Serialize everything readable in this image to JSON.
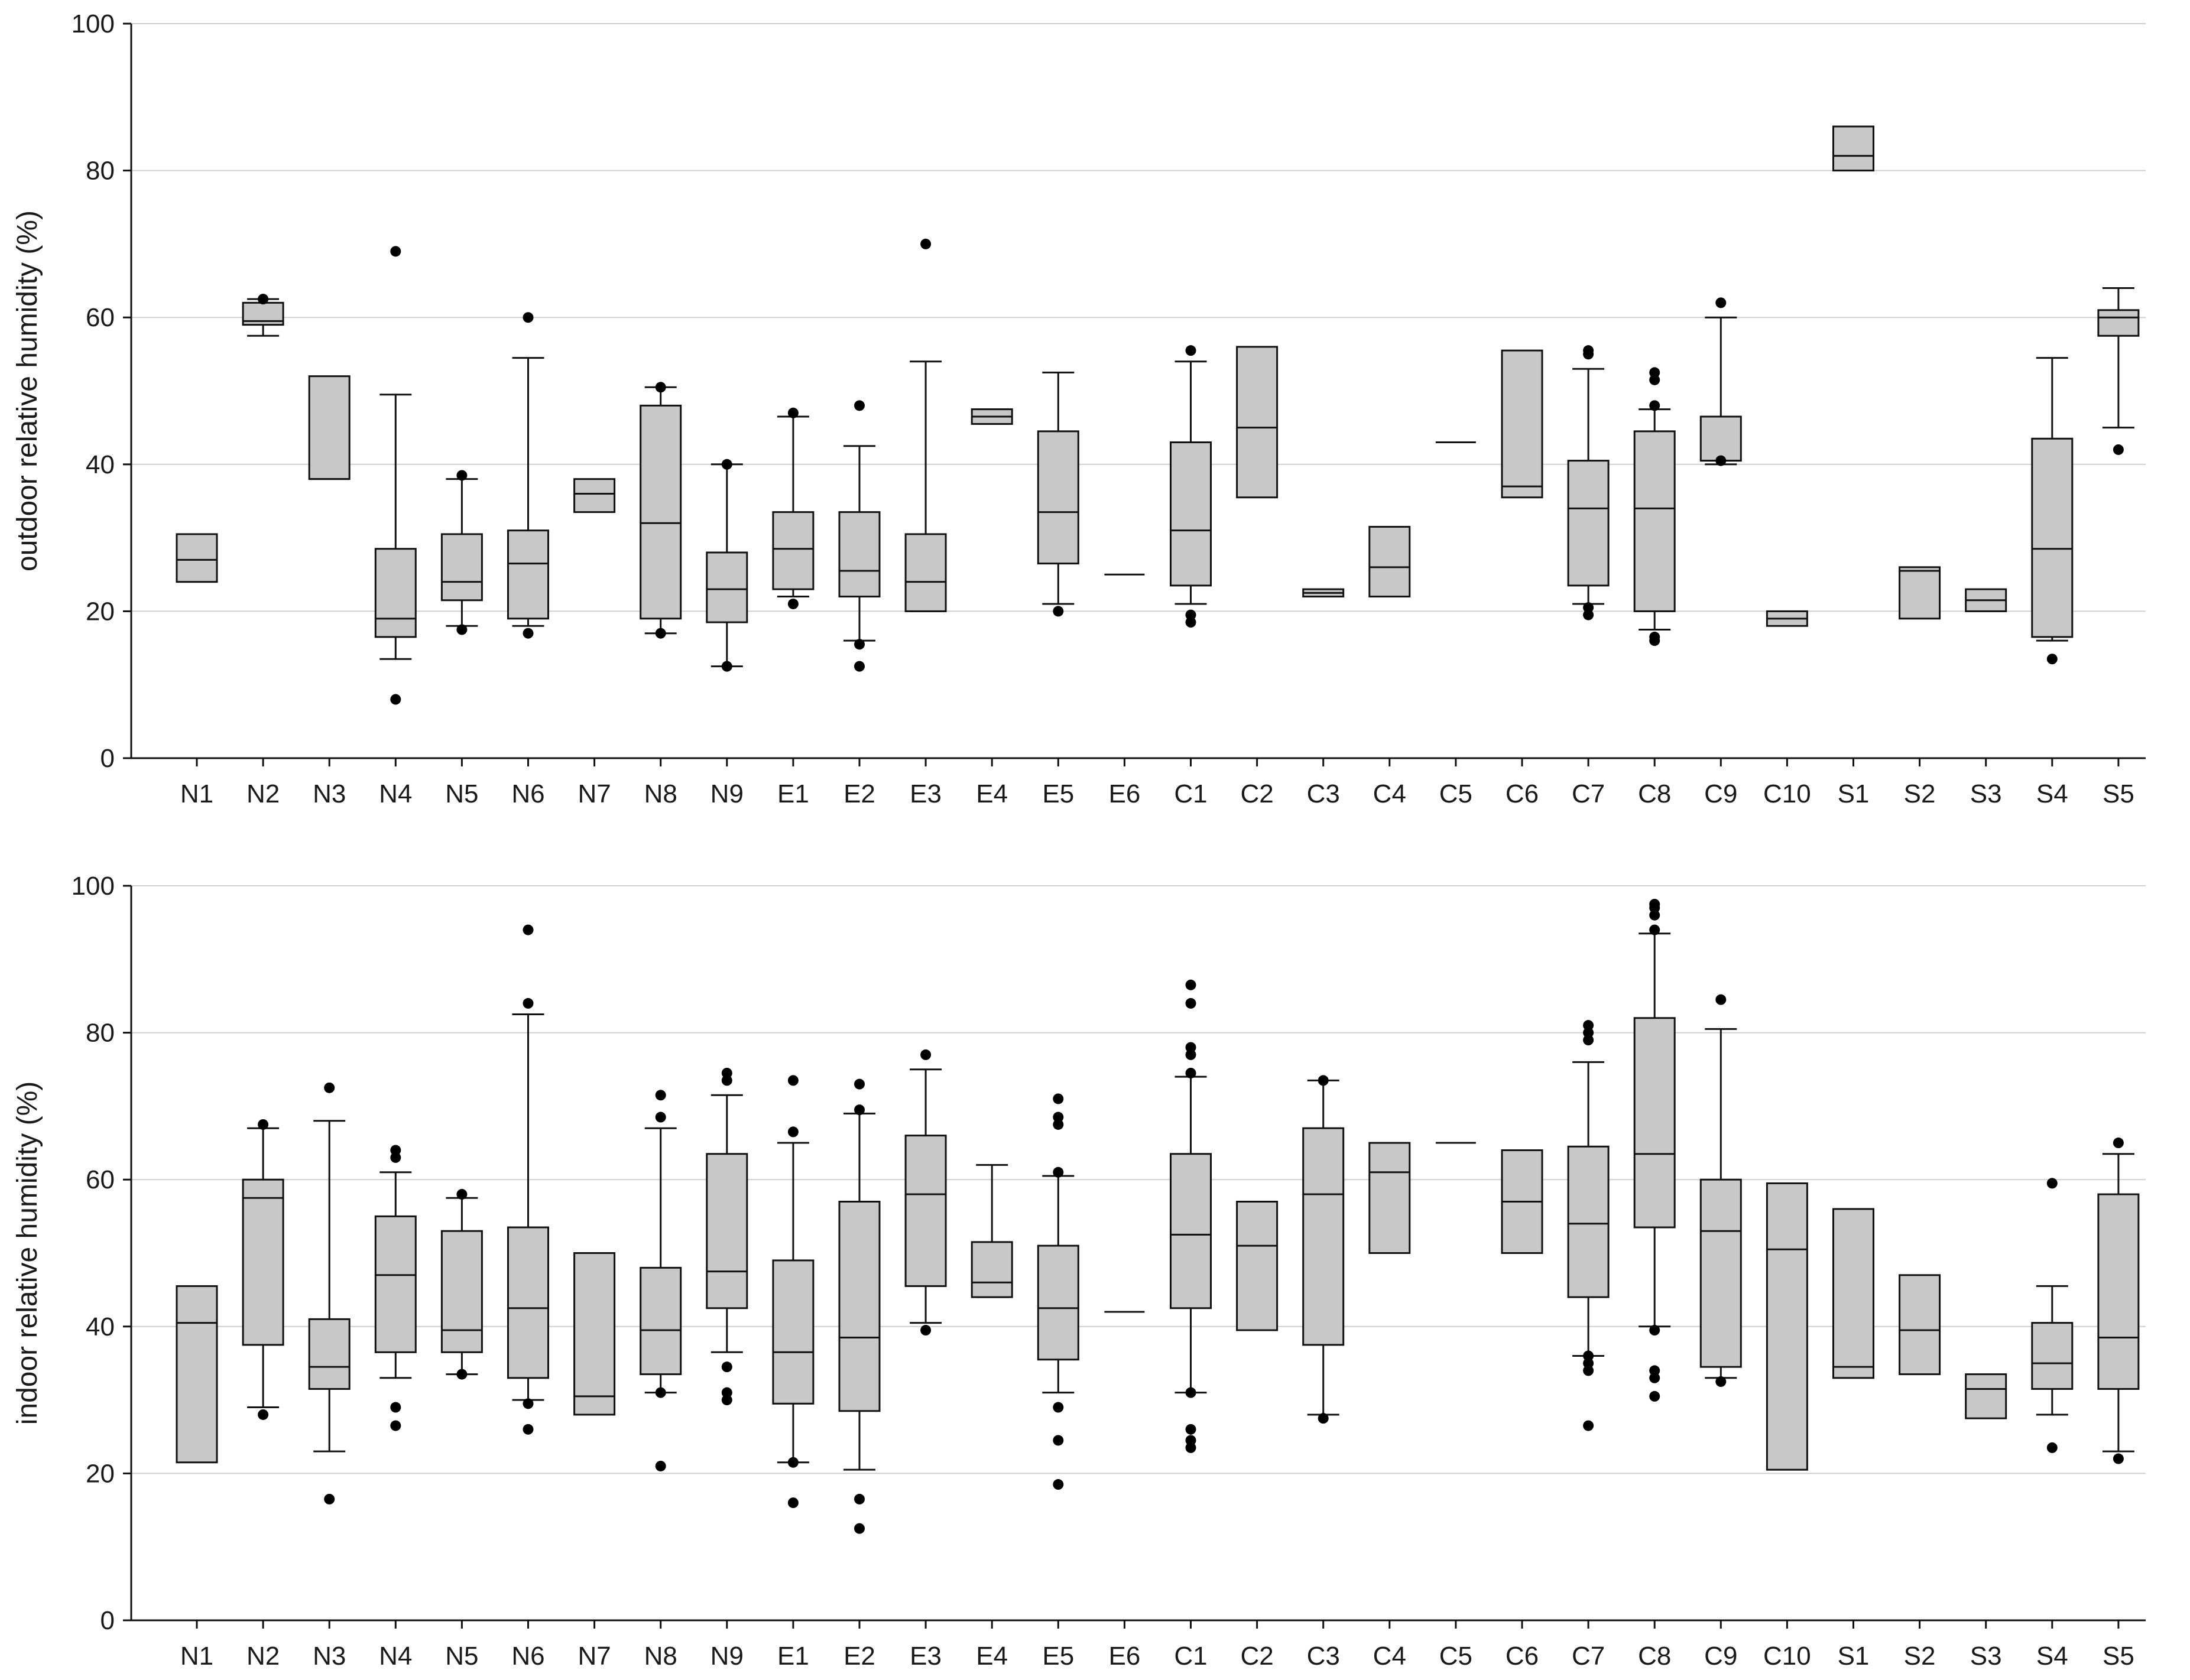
{
  "colors": {
    "box_fill": "#c8c8c8",
    "stroke": "#111111",
    "grid": "#cfcfcf",
    "outlier": "#000000"
  },
  "chart_data": [
    {
      "type": "box",
      "title": "",
      "xlabel": "",
      "ylabel": "outdoor relative humidity (%)",
      "ylim": [
        0,
        100
      ],
      "yticks": [
        0,
        20,
        40,
        60,
        80,
        100
      ],
      "grid": true,
      "categories": [
        "N1",
        "N2",
        "N3",
        "N4",
        "N5",
        "N6",
        "N7",
        "N8",
        "N9",
        "E1",
        "E2",
        "E3",
        "E4",
        "E5",
        "E6",
        "C1",
        "C2",
        "C3",
        "C4",
        "C5",
        "C6",
        "C7",
        "C8",
        "C9",
        "C10",
        "S1",
        "S2",
        "S3",
        "S4",
        "S5"
      ],
      "boxes": [
        {
          "q1": 24,
          "median": 27,
          "q3": 30.5,
          "whisker_low": null,
          "whisker_high": null,
          "outliers": []
        },
        {
          "q1": 59,
          "median": 59.5,
          "q3": 62,
          "whisker_low": 57.5,
          "whisker_high": 62.5,
          "outliers": [
            62.5
          ]
        },
        {
          "q1": 38,
          "median": 38,
          "q3": 52,
          "whisker_low": null,
          "whisker_high": null,
          "outliers": []
        },
        {
          "q1": 16.5,
          "median": 19,
          "q3": 28.5,
          "whisker_low": 13.5,
          "whisker_high": 49.5,
          "outliers": [
            69,
            8
          ]
        },
        {
          "q1": 21.5,
          "median": 24,
          "q3": 30.5,
          "whisker_low": 18,
          "whisker_high": 38,
          "outliers": [
            38.5,
            17.5
          ]
        },
        {
          "q1": 19,
          "median": 26.5,
          "q3": 31,
          "whisker_low": 18,
          "whisker_high": 54.5,
          "outliers": [
            60,
            17
          ]
        },
        {
          "q1": 33.5,
          "median": 36,
          "q3": 38,
          "whisker_low": null,
          "whisker_high": null,
          "outliers": []
        },
        {
          "q1": 19,
          "median": 32,
          "q3": 48,
          "whisker_low": 17,
          "whisker_high": 50.5,
          "outliers": [
            50.5,
            17
          ]
        },
        {
          "q1": 18.5,
          "median": 23,
          "q3": 28,
          "whisker_low": 12.5,
          "whisker_high": 40,
          "outliers": [
            40,
            12.5
          ]
        },
        {
          "q1": 23,
          "median": 28.5,
          "q3": 33.5,
          "whisker_low": 22,
          "whisker_high": 46.5,
          "outliers": [
            47,
            21
          ]
        },
        {
          "q1": 22,
          "median": 25.5,
          "q3": 33.5,
          "whisker_low": 16,
          "whisker_high": 42.5,
          "outliers": [
            48,
            15.5,
            12.5
          ]
        },
        {
          "q1": 20,
          "median": 24,
          "q3": 30.5,
          "whisker_low": 20,
          "whisker_high": 54,
          "outliers": [
            70
          ]
        },
        {
          "q1": 45.5,
          "median": 46.5,
          "q3": 47.5,
          "whisker_low": 45.5,
          "whisker_high": 47.5,
          "outliers": []
        },
        {
          "q1": 26.5,
          "median": 33.5,
          "q3": 44.5,
          "whisker_low": 21,
          "whisker_high": 52.5,
          "outliers": [
            20
          ]
        },
        {
          "q1": 25,
          "median": 25,
          "q3": 25,
          "whisker_low": null,
          "whisker_high": null,
          "outliers": []
        },
        {
          "q1": 23.5,
          "median": 31,
          "q3": 43,
          "whisker_low": 21,
          "whisker_high": 54,
          "outliers": [
            55.5,
            19.5,
            18.5
          ]
        },
        {
          "q1": 35.5,
          "median": 45,
          "q3": 56,
          "whisker_low": null,
          "whisker_high": null,
          "outliers": []
        },
        {
          "q1": 22,
          "median": 22.5,
          "q3": 23,
          "whisker_low": null,
          "whisker_high": null,
          "outliers": []
        },
        {
          "q1": 22,
          "median": 26,
          "q3": 31.5,
          "whisker_low": null,
          "whisker_high": null,
          "outliers": []
        },
        {
          "q1": 43,
          "median": 43,
          "q3": 43,
          "whisker_low": null,
          "whisker_high": null,
          "outliers": []
        },
        {
          "q1": 35.5,
          "median": 37,
          "q3": 55.5,
          "whisker_low": null,
          "whisker_high": null,
          "outliers": []
        },
        {
          "q1": 23.5,
          "median": 34,
          "q3": 40.5,
          "whisker_low": 21,
          "whisker_high": 53,
          "outliers": [
            55.5,
            55,
            20.5,
            19.5
          ]
        },
        {
          "q1": 20,
          "median": 34,
          "q3": 44.5,
          "whisker_low": 17.5,
          "whisker_high": 47.5,
          "outliers": [
            52.5,
            51.5,
            48,
            16.5,
            16
          ]
        },
        {
          "q1": 40.5,
          "median": 40.5,
          "q3": 46.5,
          "whisker_low": 40,
          "whisker_high": 60,
          "outliers": [
            62,
            40.5
          ]
        },
        {
          "q1": 18,
          "median": 19,
          "q3": 20,
          "whisker_low": null,
          "whisker_high": null,
          "outliers": []
        },
        {
          "q1": 80,
          "median": 82,
          "q3": 86,
          "whisker_low": null,
          "whisker_high": null,
          "outliers": []
        },
        {
          "q1": 19,
          "median": 25.5,
          "q3": 26,
          "whisker_low": null,
          "whisker_high": null,
          "outliers": []
        },
        {
          "q1": 20,
          "median": 21.5,
          "q3": 23,
          "whisker_low": null,
          "whisker_high": null,
          "outliers": []
        },
        {
          "q1": 16.5,
          "median": 28.5,
          "q3": 43.5,
          "whisker_low": 16,
          "whisker_high": 54.5,
          "outliers": [
            13.5
          ]
        },
        {
          "q1": 57.5,
          "median": 60,
          "q3": 61,
          "whisker_low": 45,
          "whisker_high": 64,
          "outliers": [
            42
          ]
        }
      ]
    },
    {
      "type": "box",
      "title": "",
      "xlabel": "",
      "ylabel": "indoor relative humidity (%)",
      "ylim": [
        0,
        100
      ],
      "yticks": [
        0,
        20,
        40,
        60,
        80,
        100
      ],
      "grid": true,
      "categories": [
        "N1",
        "N2",
        "N3",
        "N4",
        "N5",
        "N6",
        "N7",
        "N8",
        "N9",
        "E1",
        "E2",
        "E3",
        "E4",
        "E5",
        "E6",
        "C1",
        "C2",
        "C3",
        "C4",
        "C5",
        "C6",
        "C7",
        "C8",
        "C9",
        "C10",
        "S1",
        "S2",
        "S3",
        "S4",
        "S5"
      ],
      "boxes": [
        {
          "q1": 21.5,
          "median": 40.5,
          "q3": 45.5,
          "whisker_low": null,
          "whisker_high": null,
          "outliers": []
        },
        {
          "q1": 37.5,
          "median": 57.5,
          "q3": 60,
          "whisker_low": 29,
          "whisker_high": 67,
          "outliers": [
            67.5,
            28
          ]
        },
        {
          "q1": 31.5,
          "median": 34.5,
          "q3": 41,
          "whisker_low": 23,
          "whisker_high": 68,
          "outliers": [
            72.5,
            16.5
          ]
        },
        {
          "q1": 36.5,
          "median": 47,
          "q3": 55,
          "whisker_low": 33,
          "whisker_high": 61,
          "outliers": [
            64,
            63,
            29,
            26.5
          ]
        },
        {
          "q1": 36.5,
          "median": 39.5,
          "q3": 53,
          "whisker_low": 33.5,
          "whisker_high": 57.5,
          "outliers": [
            58,
            33.5
          ]
        },
        {
          "q1": 33,
          "median": 42.5,
          "q3": 53.5,
          "whisker_low": 30,
          "whisker_high": 82.5,
          "outliers": [
            94,
            84,
            29.5,
            26
          ]
        },
        {
          "q1": 28,
          "median": 30.5,
          "q3": 50,
          "whisker_low": null,
          "whisker_high": null,
          "outliers": []
        },
        {
          "q1": 33.5,
          "median": 39.5,
          "q3": 48,
          "whisker_low": 31,
          "whisker_high": 67,
          "outliers": [
            71.5,
            68.5,
            31,
            21
          ]
        },
        {
          "q1": 42.5,
          "median": 47.5,
          "q3": 63.5,
          "whisker_low": 36.5,
          "whisker_high": 71.5,
          "outliers": [
            74.5,
            73.5,
            34.5,
            31,
            30
          ]
        },
        {
          "q1": 29.5,
          "median": 36.5,
          "q3": 49,
          "whisker_low": 21.5,
          "whisker_high": 65,
          "outliers": [
            73.5,
            66.5,
            21.5,
            16
          ]
        },
        {
          "q1": 28.5,
          "median": 38.5,
          "q3": 57,
          "whisker_low": 20.5,
          "whisker_high": 69,
          "outliers": [
            73,
            69.5,
            16.5,
            12.5
          ]
        },
        {
          "q1": 45.5,
          "median": 58,
          "q3": 66,
          "whisker_low": 40.5,
          "whisker_high": 75,
          "outliers": [
            77,
            39.5
          ]
        },
        {
          "q1": 44,
          "median": 46,
          "q3": 51.5,
          "whisker_low": 44,
          "whisker_high": 62,
          "outliers": []
        },
        {
          "q1": 35.5,
          "median": 42.5,
          "q3": 51,
          "whisker_low": 31,
          "whisker_high": 60.5,
          "outliers": [
            71,
            68.5,
            67.5,
            61,
            29,
            24.5,
            18.5
          ]
        },
        {
          "q1": 42,
          "median": 42,
          "q3": 42,
          "whisker_low": null,
          "whisker_high": null,
          "outliers": []
        },
        {
          "q1": 42.5,
          "median": 52.5,
          "q3": 63.5,
          "whisker_low": 31,
          "whisker_high": 74,
          "outliers": [
            86.5,
            84,
            78,
            77,
            74.5,
            31,
            26,
            24.5,
            23.5
          ]
        },
        {
          "q1": 39.5,
          "median": 51,
          "q3": 57,
          "whisker_low": null,
          "whisker_high": null,
          "outliers": []
        },
        {
          "q1": 37.5,
          "median": 58,
          "q3": 67,
          "whisker_low": 28,
          "whisker_high": 73.5,
          "outliers": [
            73.5,
            27.5
          ]
        },
        {
          "q1": 50,
          "median": 61,
          "q3": 65,
          "whisker_low": null,
          "whisker_high": null,
          "outliers": []
        },
        {
          "q1": 65,
          "median": 65,
          "q3": 65,
          "whisker_low": null,
          "whisker_high": null,
          "outliers": []
        },
        {
          "q1": 50,
          "median": 57,
          "q3": 64,
          "whisker_low": null,
          "whisker_high": null,
          "outliers": []
        },
        {
          "q1": 44,
          "median": 54,
          "q3": 64.5,
          "whisker_low": 36,
          "whisker_high": 76,
          "outliers": [
            81,
            80,
            79,
            36,
            35,
            34,
            26.5
          ]
        },
        {
          "q1": 53.5,
          "median": 63.5,
          "q3": 82,
          "whisker_low": 40,
          "whisker_high": 93.5,
          "outliers": [
            97.5,
            97,
            96,
            94,
            39.5,
            34,
            33,
            30.5
          ]
        },
        {
          "q1": 34.5,
          "median": 53,
          "q3": 60,
          "whisker_low": 33,
          "whisker_high": 80.5,
          "outliers": [
            84.5,
            32.5
          ]
        },
        {
          "q1": 20.5,
          "median": 50.5,
          "q3": 59.5,
          "whisker_low": null,
          "whisker_high": null,
          "outliers": []
        },
        {
          "q1": 33,
          "median": 34.5,
          "q3": 56,
          "whisker_low": null,
          "whisker_high": null,
          "outliers": []
        },
        {
          "q1": 33.5,
          "median": 39.5,
          "q3": 47,
          "whisker_low": null,
          "whisker_high": null,
          "outliers": []
        },
        {
          "q1": 27.5,
          "median": 31.5,
          "q3": 33.5,
          "whisker_low": null,
          "whisker_high": null,
          "outliers": []
        },
        {
          "q1": 31.5,
          "median": 35,
          "q3": 40.5,
          "whisker_low": 28,
          "whisker_high": 45.5,
          "outliers": [
            59.5,
            23.5
          ]
        },
        {
          "q1": 31.5,
          "median": 38.5,
          "q3": 58,
          "whisker_low": 23,
          "whisker_high": 63.5,
          "outliers": [
            65,
            22
          ]
        }
      ]
    }
  ]
}
